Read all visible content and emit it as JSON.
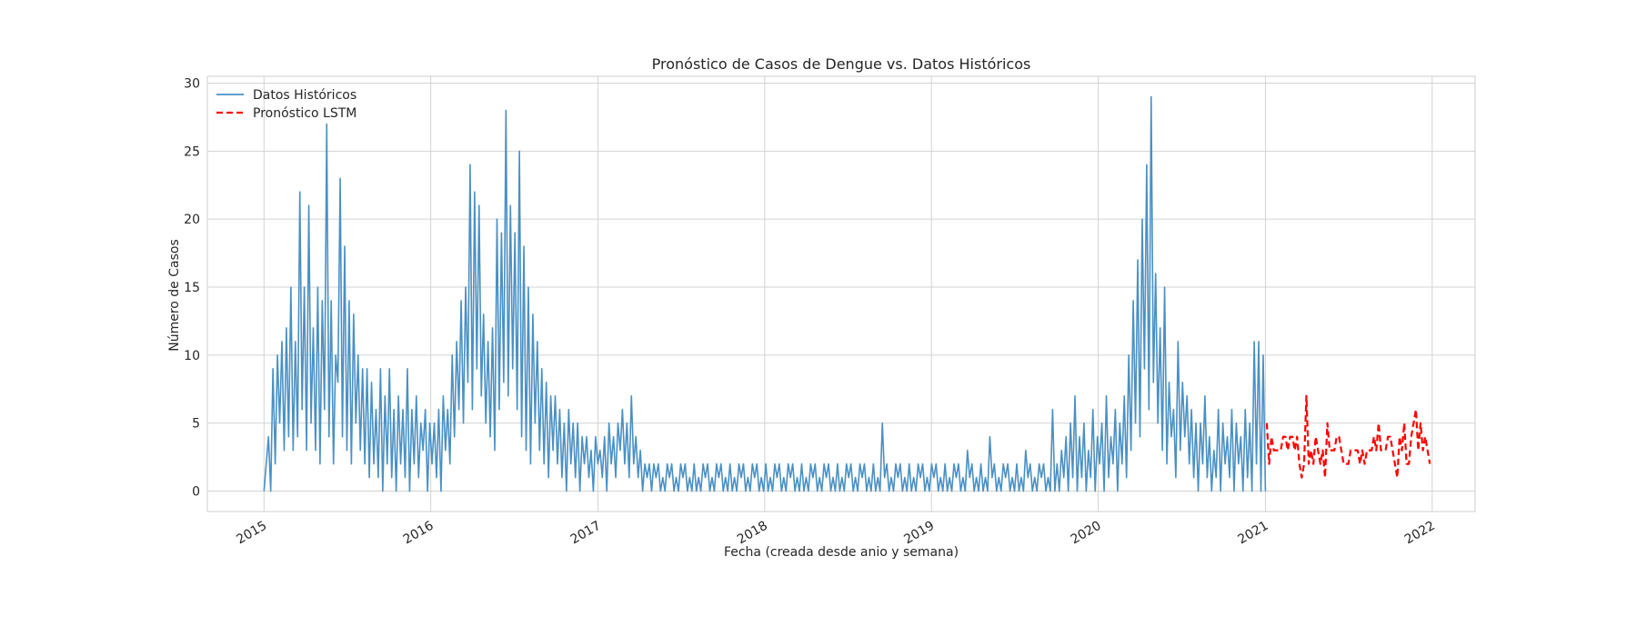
{
  "chart_data": {
    "type": "line",
    "title": "Pronóstico de Casos de Dengue vs. Datos Históricos",
    "xlabel": "Fecha (creada desde anio y semana)",
    "ylabel": "Número de Casos",
    "xlim": [
      "2014-08-30",
      "2022-04-05"
    ],
    "ylim": [
      -1.5,
      30.5
    ],
    "x_ticks": [
      "2015",
      "2016",
      "2017",
      "2018",
      "2019",
      "2020",
      "2021",
      "2022"
    ],
    "y_ticks": [
      0,
      5,
      10,
      15,
      20,
      25,
      30
    ],
    "grid": true,
    "legend_position": "top-left",
    "series": [
      {
        "name": "Datos Históricos",
        "style": "solid",
        "color": "#4a90c4",
        "x_start": "2015-01-01",
        "x_end": "2021-01-01",
        "values": [
          0,
          2,
          4,
          0,
          9,
          2,
          10,
          5,
          11,
          3,
          12,
          4,
          15,
          3,
          11,
          4,
          22,
          6,
          15,
          3,
          21,
          5,
          12,
          3,
          15,
          2,
          14,
          6,
          27,
          4,
          14,
          2,
          10,
          8,
          23,
          4,
          18,
          3,
          14,
          2,
          13,
          5,
          10,
          3,
          9,
          2,
          9,
          1,
          8,
          2,
          6,
          1,
          9,
          0,
          7,
          2,
          9,
          1,
          6,
          0,
          7,
          2,
          6,
          1,
          9,
          0,
          6,
          2,
          7,
          1,
          5,
          3,
          6,
          0,
          5,
          2,
          5,
          1,
          6,
          0,
          7,
          3,
          6,
          2,
          10,
          4,
          11,
          6,
          14,
          5,
          15,
          8,
          24,
          6,
          22,
          9,
          21,
          7,
          13,
          5,
          11,
          4,
          12,
          3,
          20,
          6,
          19,
          8,
          28,
          7,
          21,
          9,
          19,
          6,
          25,
          4,
          18,
          3,
          15,
          2,
          13,
          5,
          11,
          3,
          9,
          2,
          8,
          1,
          7,
          3,
          7,
          2,
          6,
          1,
          5,
          0,
          6,
          2,
          5,
          1,
          5,
          0,
          4,
          2,
          4,
          1,
          3,
          0,
          4,
          2,
          3,
          1,
          4,
          0,
          5,
          2,
          4,
          1,
          5,
          3,
          6,
          2,
          5,
          1,
          7,
          2,
          4,
          1,
          3,
          0,
          2,
          1,
          2,
          0,
          2,
          1,
          2,
          0,
          1,
          0,
          2,
          1,
          2,
          0,
          1,
          0,
          2,
          1,
          2,
          0,
          1,
          0,
          2,
          0,
          1,
          0,
          2,
          1,
          2,
          0,
          1,
          0,
          2,
          1,
          2,
          0,
          1,
          0,
          2,
          0,
          1,
          0,
          2,
          1,
          2,
          0,
          1,
          0,
          2,
          1,
          2,
          0,
          1,
          0,
          2,
          0,
          1,
          0,
          2,
          1,
          2,
          0,
          1,
          0,
          2,
          1,
          2,
          0,
          1,
          0,
          2,
          0,
          1,
          0,
          2,
          1,
          2,
          0,
          1,
          0,
          2,
          1,
          2,
          0,
          1,
          0,
          2,
          0,
          1,
          0,
          2,
          1,
          2,
          0,
          1,
          0,
          2,
          1,
          2,
          0,
          1,
          0,
          2,
          0,
          1,
          0,
          5,
          1,
          2,
          0,
          1,
          0,
          2,
          1,
          2,
          0,
          1,
          0,
          2,
          0,
          1,
          0,
          2,
          1,
          2,
          0,
          1,
          0,
          2,
          1,
          2,
          0,
          1,
          0,
          2,
          0,
          1,
          0,
          2,
          1,
          2,
          0,
          1,
          0,
          3,
          1,
          2,
          0,
          1,
          0,
          2,
          0,
          1,
          0,
          4,
          1,
          2,
          0,
          1,
          0,
          2,
          1,
          2,
          0,
          1,
          0,
          2,
          0,
          1,
          0,
          3,
          1,
          2,
          0,
          1,
          0,
          2,
          1,
          2,
          0,
          1,
          0,
          6,
          0,
          2,
          0,
          3,
          1,
          4,
          0,
          5,
          1,
          7,
          0,
          4,
          1,
          5,
          0,
          3,
          1,
          6,
          0,
          4,
          2,
          5,
          0,
          7,
          1,
          4,
          2,
          6,
          0,
          5,
          2,
          7,
          1,
          10,
          3,
          14,
          5,
          17,
          4,
          20,
          9,
          24,
          6,
          29,
          8,
          16,
          5,
          12,
          3,
          15,
          2,
          8,
          4,
          6,
          1,
          11,
          3,
          8,
          4,
          7,
          2,
          6,
          1,
          5,
          0,
          5,
          2,
          7,
          1,
          4,
          0,
          3,
          1,
          6,
          0,
          5,
          2,
          4,
          1,
          6,
          0,
          5,
          2,
          4,
          0,
          6,
          1,
          5,
          0,
          11,
          2,
          11,
          0,
          10,
          0
        ]
      },
      {
        "name": "Pronóstico LSTM",
        "style": "dashed",
        "color": "#ff0000",
        "x_start": "2021-01-04",
        "x_end": "2021-12-27",
        "values": [
          5,
          2,
          4,
          3,
          3,
          3,
          3,
          4,
          4,
          3,
          4,
          4,
          3,
          4,
          2,
          1,
          2,
          7,
          2,
          3,
          2,
          4,
          3,
          2,
          3,
          1,
          5,
          3,
          3,
          3,
          4,
          4,
          3,
          2,
          2,
          2,
          3,
          3,
          3,
          3,
          2,
          3,
          2,
          3,
          3,
          3,
          4,
          3,
          5,
          3,
          3,
          3,
          4,
          4,
          3,
          2,
          1,
          4,
          3,
          5,
          2,
          2,
          4,
          5,
          6,
          3,
          5,
          3,
          4,
          3,
          2
        ]
      }
    ]
  }
}
